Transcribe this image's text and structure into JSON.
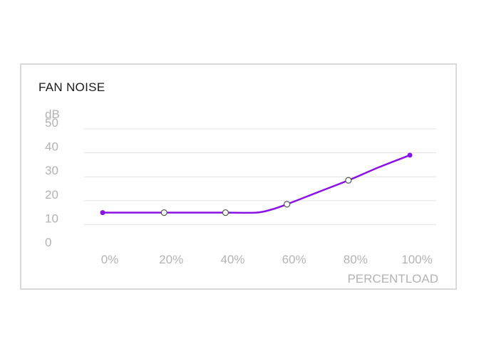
{
  "chart_data": {
    "type": "line",
    "title": "FAN NOISE",
    "ylabel": "dB",
    "xlabel": "PERCENTLOAD",
    "ylim": [
      0,
      50
    ],
    "y_ticks": [
      "0",
      "10",
      "20",
      "30",
      "40",
      "50"
    ],
    "categories": [
      "0%",
      "20%",
      "40%",
      "60%",
      "80%",
      "100%"
    ],
    "x": [
      0,
      20,
      40,
      60,
      80,
      100
    ],
    "series": [
      {
        "values": [
          15,
          15,
          15,
          18.5,
          28.5,
          39
        ],
        "curve_points": [
          [
            0,
            15
          ],
          [
            10,
            15
          ],
          [
            20,
            15
          ],
          [
            30,
            15
          ],
          [
            40,
            15
          ],
          [
            50,
            15
          ],
          [
            55,
            16.3
          ],
          [
            60,
            18.5
          ],
          [
            70,
            23.5
          ],
          [
            80,
            28.5
          ],
          [
            90,
            34
          ],
          [
            100,
            39
          ]
        ],
        "color": "#8a12e6"
      }
    ],
    "grid": true
  }
}
